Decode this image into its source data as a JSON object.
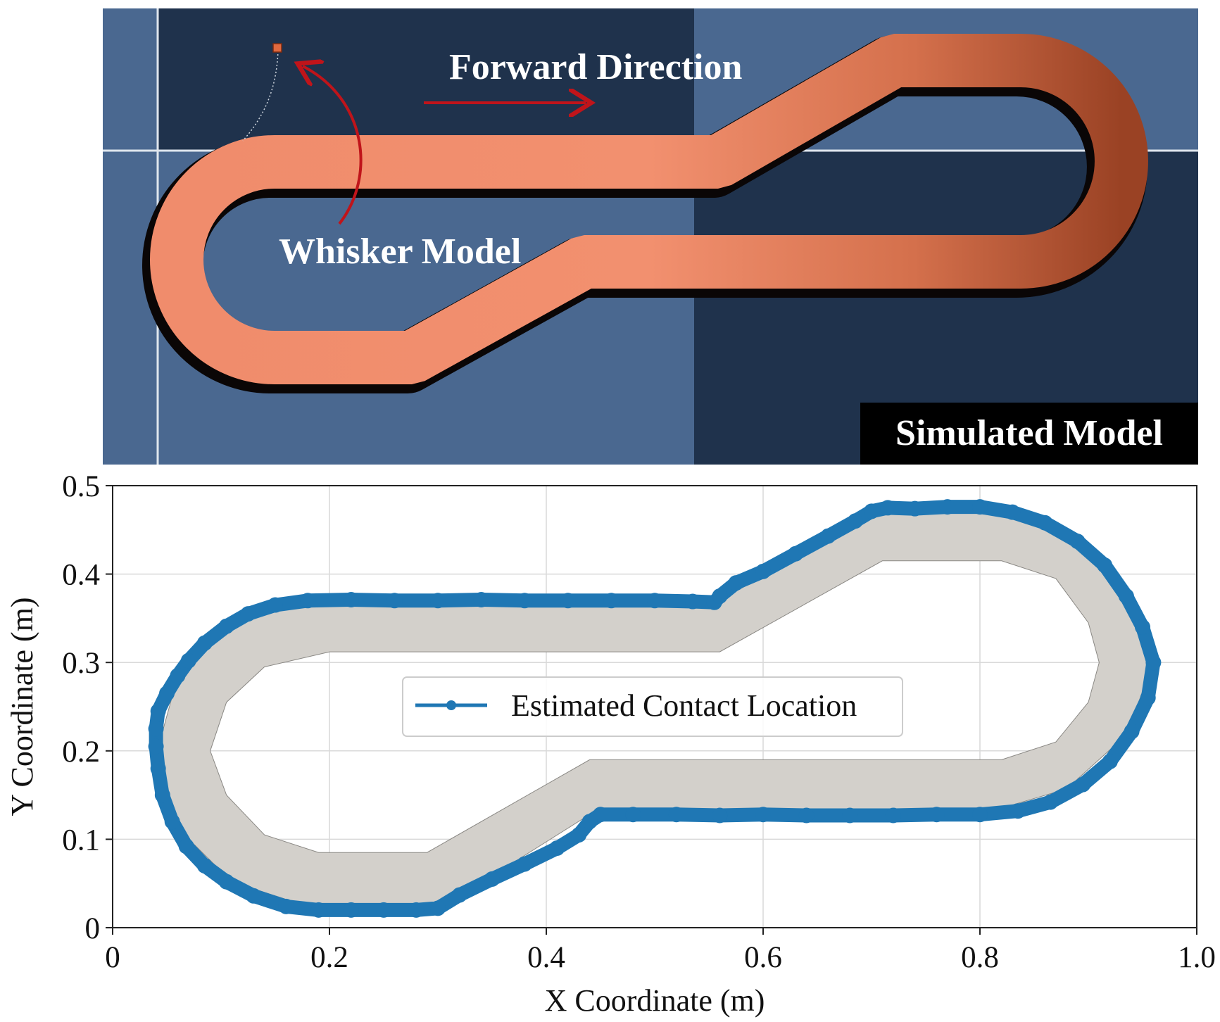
{
  "sim_panel": {
    "forward_label": "Forward Direction",
    "whisker_label": "Whisker Model",
    "badge_label": "Simulated Model",
    "colors": {
      "floor_light": "#4a6890",
      "floor_dark": "#1f324c",
      "track": "#f08c6c",
      "track_shade": "#a84a2a",
      "arrow": "#c0141a",
      "badge_bg": "#000000"
    }
  },
  "chart_data": {
    "type": "scatter",
    "title": "",
    "xlabel": "X Coordinate (m)",
    "ylabel": "Y Coordinate (m)",
    "xlim": [
      0,
      1.0
    ],
    "ylim": [
      0,
      0.5
    ],
    "xticks": [
      0,
      0.2,
      0.4,
      0.6,
      0.8,
      1.0
    ],
    "xtick_labels": [
      "0",
      "0.2",
      "0.4",
      "0.6",
      "0.8",
      "1.0"
    ],
    "yticks": [
      0,
      0.1,
      0.2,
      0.3,
      0.4,
      0.5
    ],
    "ytick_labels": [
      "0",
      "0.1",
      "0.2",
      "0.3",
      "0.4",
      "0.5"
    ],
    "grid": true,
    "legend_position": "center",
    "track_region": {
      "color": "#d3d0cb",
      "outer": [
        [
          0.16,
          0.37
        ],
        [
          0.56,
          0.37
        ],
        [
          0.71,
          0.475
        ],
        [
          0.8,
          0.475
        ],
        [
          0.88,
          0.443
        ],
        [
          0.935,
          0.382
        ],
        [
          0.96,
          0.3
        ],
        [
          0.935,
          0.218
        ],
        [
          0.88,
          0.157
        ],
        [
          0.8,
          0.128
        ],
        [
          0.44,
          0.128
        ],
        [
          0.3,
          0.02
        ],
        [
          0.19,
          0.02
        ],
        [
          0.11,
          0.052
        ],
        [
          0.058,
          0.115
        ],
        [
          0.04,
          0.195
        ],
        [
          0.058,
          0.275
        ],
        [
          0.1,
          0.335
        ]
      ],
      "inner": [
        [
          0.2,
          0.312
        ],
        [
          0.56,
          0.312
        ],
        [
          0.71,
          0.415
        ],
        [
          0.82,
          0.415
        ],
        [
          0.87,
          0.395
        ],
        [
          0.9,
          0.345
        ],
        [
          0.91,
          0.3
        ],
        [
          0.9,
          0.255
        ],
        [
          0.87,
          0.21
        ],
        [
          0.82,
          0.19
        ],
        [
          0.44,
          0.19
        ],
        [
          0.29,
          0.085
        ],
        [
          0.19,
          0.085
        ],
        [
          0.14,
          0.105
        ],
        [
          0.105,
          0.15
        ],
        [
          0.09,
          0.2
        ],
        [
          0.105,
          0.255
        ],
        [
          0.14,
          0.295
        ]
      ]
    },
    "series": [
      {
        "name": "Estimated Contact Location",
        "color": "#1f77b4",
        "points": [
          [
            0.04,
            0.225
          ],
          [
            0.042,
            0.245
          ],
          [
            0.05,
            0.265
          ],
          [
            0.06,
            0.285
          ],
          [
            0.07,
            0.302
          ],
          [
            0.085,
            0.322
          ],
          [
            0.105,
            0.341
          ],
          [
            0.125,
            0.355
          ],
          [
            0.15,
            0.365
          ],
          [
            0.18,
            0.37
          ],
          [
            0.22,
            0.371
          ],
          [
            0.26,
            0.37
          ],
          [
            0.3,
            0.37
          ],
          [
            0.34,
            0.371
          ],
          [
            0.38,
            0.37
          ],
          [
            0.42,
            0.37
          ],
          [
            0.46,
            0.37
          ],
          [
            0.5,
            0.37
          ],
          [
            0.535,
            0.369
          ],
          [
            0.555,
            0.368
          ],
          [
            0.56,
            0.375
          ],
          [
            0.575,
            0.39
          ],
          [
            0.6,
            0.403
          ],
          [
            0.63,
            0.423
          ],
          [
            0.66,
            0.443
          ],
          [
            0.685,
            0.46
          ],
          [
            0.7,
            0.471
          ],
          [
            0.715,
            0.475
          ],
          [
            0.74,
            0.474
          ],
          [
            0.77,
            0.476
          ],
          [
            0.8,
            0.476
          ],
          [
            0.83,
            0.47
          ],
          [
            0.86,
            0.458
          ],
          [
            0.89,
            0.437
          ],
          [
            0.915,
            0.41
          ],
          [
            0.935,
            0.375
          ],
          [
            0.95,
            0.34
          ],
          [
            0.96,
            0.3
          ],
          [
            0.955,
            0.26
          ],
          [
            0.94,
            0.222
          ],
          [
            0.92,
            0.188
          ],
          [
            0.895,
            0.162
          ],
          [
            0.865,
            0.142
          ],
          [
            0.835,
            0.132
          ],
          [
            0.8,
            0.128
          ],
          [
            0.76,
            0.128
          ],
          [
            0.72,
            0.127
          ],
          [
            0.68,
            0.127
          ],
          [
            0.64,
            0.127
          ],
          [
            0.6,
            0.128
          ],
          [
            0.56,
            0.127
          ],
          [
            0.52,
            0.128
          ],
          [
            0.48,
            0.128
          ],
          [
            0.45,
            0.128
          ],
          [
            0.44,
            0.12
          ],
          [
            0.43,
            0.105
          ],
          [
            0.41,
            0.09
          ],
          [
            0.38,
            0.072
          ],
          [
            0.35,
            0.055
          ],
          [
            0.32,
            0.037
          ],
          [
            0.3,
            0.022
          ],
          [
            0.28,
            0.02
          ],
          [
            0.25,
            0.02
          ],
          [
            0.22,
            0.02
          ],
          [
            0.19,
            0.02
          ],
          [
            0.16,
            0.024
          ],
          [
            0.13,
            0.036
          ],
          [
            0.105,
            0.052
          ],
          [
            0.085,
            0.07
          ],
          [
            0.068,
            0.092
          ],
          [
            0.055,
            0.12
          ],
          [
            0.046,
            0.15
          ],
          [
            0.042,
            0.18
          ],
          [
            0.04,
            0.205
          ]
        ]
      }
    ]
  }
}
